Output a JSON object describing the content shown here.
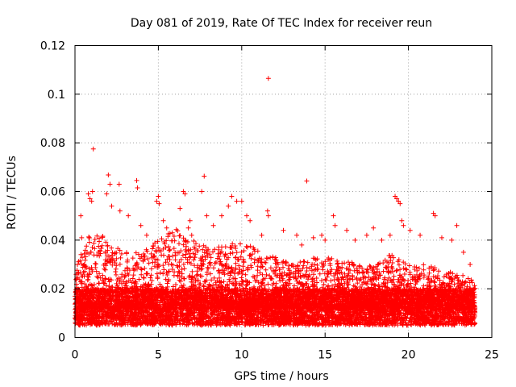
{
  "chart_data": {
    "type": "scatter",
    "title": "Day 081 of 2019, Rate Of TEC Index for receiver reun",
    "xlabel": "GPS time / hours",
    "ylabel": "ROTI / TECUs",
    "xlim": [
      0,
      25
    ],
    "ylim": [
      0,
      0.12
    ],
    "xticks": [
      0,
      5,
      10,
      15,
      20,
      25
    ],
    "yticks": [
      0,
      0.02,
      0.04,
      0.06,
      0.08,
      0.1,
      0.12
    ],
    "xtick_labels": [
      "0",
      "5",
      "10",
      "15",
      "20",
      "25"
    ],
    "ytick_labels": [
      "0",
      "0.02",
      "0.04",
      "0.06",
      "0.08",
      "0.1",
      "0.12"
    ],
    "grid": true,
    "marker": "+",
    "marker_color": "#ff0000",
    "data_range": [
      0,
      24
    ],
    "baseline_band": [
      0.005,
      0.02
    ],
    "points": [
      [
        1.1,
        0.0775
      ],
      [
        11.6,
        0.1065
      ],
      [
        13.9,
        0.0643
      ],
      [
        7.75,
        0.0663
      ],
      [
        2.0,
        0.0668
      ],
      [
        2.1,
        0.063
      ],
      [
        2.65,
        0.063
      ],
      [
        3.7,
        0.0645
      ],
      [
        3.75,
        0.0615
      ],
      [
        0.8,
        0.059
      ],
      [
        0.9,
        0.057
      ],
      [
        1.0,
        0.056
      ],
      [
        1.05,
        0.06
      ],
      [
        0.35,
        0.05
      ],
      [
        0.4,
        0.041
      ],
      [
        1.9,
        0.059
      ],
      [
        2.2,
        0.054
      ],
      [
        2.7,
        0.052
      ],
      [
        3.2,
        0.05
      ],
      [
        3.95,
        0.046
      ],
      [
        4.3,
        0.042
      ],
      [
        4.9,
        0.056
      ],
      [
        5.0,
        0.058
      ],
      [
        5.05,
        0.055
      ],
      [
        5.3,
        0.048
      ],
      [
        5.5,
        0.045
      ],
      [
        6.3,
        0.053
      ],
      [
        6.5,
        0.06
      ],
      [
        6.6,
        0.059
      ],
      [
        6.9,
        0.048
      ],
      [
        6.8,
        0.045
      ],
      [
        7.0,
        0.042
      ],
      [
        7.6,
        0.06
      ],
      [
        7.9,
        0.05
      ],
      [
        8.3,
        0.046
      ],
      [
        8.8,
        0.05
      ],
      [
        9.2,
        0.054
      ],
      [
        9.4,
        0.058
      ],
      [
        9.7,
        0.056
      ],
      [
        10.0,
        0.056
      ],
      [
        10.3,
        0.05
      ],
      [
        10.5,
        0.048
      ],
      [
        11.2,
        0.042
      ],
      [
        11.55,
        0.052
      ],
      [
        11.6,
        0.05
      ],
      [
        12.5,
        0.044
      ],
      [
        13.3,
        0.042
      ],
      [
        13.6,
        0.038
      ],
      [
        14.3,
        0.041
      ],
      [
        14.8,
        0.042
      ],
      [
        15.0,
        0.04
      ],
      [
        15.5,
        0.05
      ],
      [
        15.6,
        0.046
      ],
      [
        16.3,
        0.044
      ],
      [
        16.8,
        0.04
      ],
      [
        17.5,
        0.042
      ],
      [
        17.9,
        0.045
      ],
      [
        18.4,
        0.04
      ],
      [
        18.9,
        0.042
      ],
      [
        19.2,
        0.058
      ],
      [
        19.3,
        0.057
      ],
      [
        19.4,
        0.056
      ],
      [
        19.5,
        0.055
      ],
      [
        19.6,
        0.048
      ],
      [
        19.7,
        0.046
      ],
      [
        20.1,
        0.044
      ],
      [
        20.7,
        0.042
      ],
      [
        21.5,
        0.051
      ],
      [
        21.6,
        0.05
      ],
      [
        22.0,
        0.041
      ],
      [
        22.6,
        0.04
      ],
      [
        22.9,
        0.046
      ],
      [
        23.3,
        0.035
      ],
      [
        23.7,
        0.03
      ]
    ],
    "activity_envelope": [
      [
        0,
        0.03
      ],
      [
        1,
        0.045
      ],
      [
        2,
        0.04
      ],
      [
        3,
        0.035
      ],
      [
        4,
        0.035
      ],
      [
        5,
        0.04
      ],
      [
        6,
        0.045
      ],
      [
        7,
        0.04
      ],
      [
        8,
        0.038
      ],
      [
        9,
        0.038
      ],
      [
        10,
        0.04
      ],
      [
        11,
        0.036
      ],
      [
        12,
        0.033
      ],
      [
        13,
        0.03
      ],
      [
        14,
        0.032
      ],
      [
        15,
        0.034
      ],
      [
        16,
        0.032
      ],
      [
        17,
        0.03
      ],
      [
        18,
        0.03
      ],
      [
        19,
        0.035
      ],
      [
        20,
        0.03
      ],
      [
        21,
        0.03
      ],
      [
        22,
        0.028
      ],
      [
        23,
        0.026
      ],
      [
        24,
        0.024
      ]
    ]
  }
}
